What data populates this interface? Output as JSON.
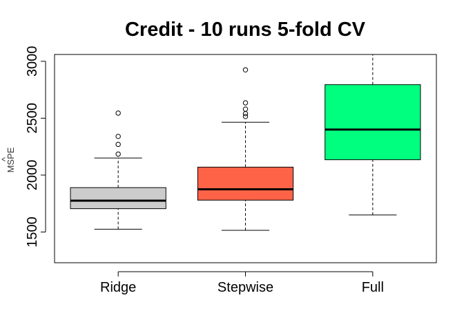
{
  "chart_data": {
    "type": "boxplot",
    "title": "Credit - 10 runs 5-fold CV",
    "ylabel": "MSPE",
    "ylabel_accent": "^",
    "xlabel": "",
    "ylim": [
      1230,
      3060
    ],
    "yticks": [
      1500,
      2000,
      2500,
      3000
    ],
    "categories": [
      "Ridge",
      "Stepwise",
      "Full"
    ],
    "colors": [
      "#cccccc",
      "#ff6347",
      "#00ff7f"
    ],
    "boxes": [
      {
        "name": "Ridge",
        "whisker_low": 1525,
        "q1": 1705,
        "median": 1775,
        "q3": 1890,
        "whisker_high": 2150,
        "outliers": [
          2185,
          2270,
          2340,
          2545
        ]
      },
      {
        "name": "Stepwise",
        "whisker_low": 1515,
        "q1": 1780,
        "median": 1875,
        "q3": 2070,
        "whisker_high": 2465,
        "outliers": [
          2515,
          2540,
          2580,
          2635,
          2925
        ]
      },
      {
        "name": "Full",
        "whisker_low": 1650,
        "q1": 2135,
        "median": 2400,
        "q3": 2795,
        "whisker_high": 3060,
        "outliers": []
      }
    ],
    "grid": false,
    "legend": "none"
  }
}
